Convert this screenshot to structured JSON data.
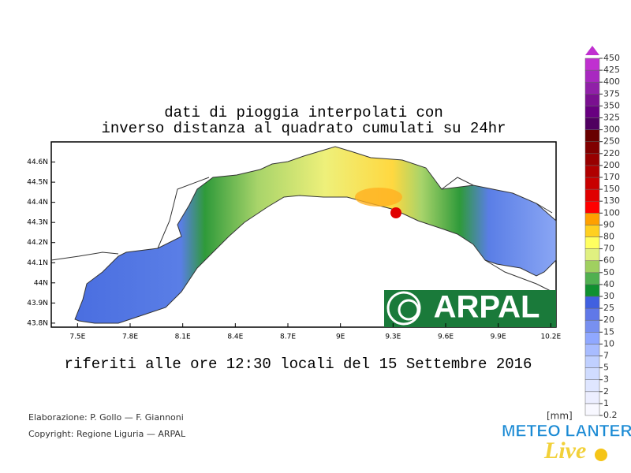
{
  "title": [
    "dati di pioggia interpolati con",
    "inverso distanza al quadrato cumulati su 24hr"
  ],
  "subtitle": "riferiti alle ore 12:30 locali del 15 Settembre 2016",
  "map": {
    "xlim": [
      7.35,
      10.23
    ],
    "ylim": [
      43.78,
      44.7
    ],
    "xticks": [
      {
        "value": 7.5,
        "label": "7.5E"
      },
      {
        "value": 7.8,
        "label": "7.8E"
      },
      {
        "value": 8.1,
        "label": "8.1E"
      },
      {
        "value": 8.4,
        "label": "8.4E"
      },
      {
        "value": 8.7,
        "label": "8.7E"
      },
      {
        "value": 9,
        "label": "9E"
      },
      {
        "value": 9.3,
        "label": "9.3E"
      },
      {
        "value": 9.6,
        "label": "9.6E"
      },
      {
        "value": 9.9,
        "label": "9.9E"
      },
      {
        "value": 10.2,
        "label": "10.2E"
      }
    ],
    "yticks": [
      {
        "value": 44.6,
        "label": "44.6N"
      },
      {
        "value": 44.5,
        "label": "44.5N"
      },
      {
        "value": 44.4,
        "label": "44.4N"
      },
      {
        "value": 44.3,
        "label": "44.3N"
      },
      {
        "value": 44.2,
        "label": "44.2N"
      },
      {
        "value": 44.1,
        "label": "44.1N"
      },
      {
        "value": 44,
        "label": "44N"
      },
      {
        "value": 43.9,
        "label": "43.9N"
      },
      {
        "value": 43.8,
        "label": "43.8N"
      }
    ]
  },
  "colorbar": {
    "unit": "[mm]",
    "levels": [
      0.2,
      1,
      2,
      3,
      5,
      7,
      10,
      15,
      20,
      25,
      30,
      40,
      50,
      60,
      70,
      80,
      90,
      100,
      130,
      150,
      170,
      200,
      220,
      250,
      300,
      325,
      350,
      375,
      400,
      425,
      450
    ],
    "colors": [
      "#f8f8ff",
      "#eceeff",
      "#dfe6ff",
      "#d0dcff",
      "#c0d0ff",
      "#a8bcff",
      "#90a8ff",
      "#7890f0",
      "#6078e8",
      "#4060e0",
      "#109030",
      "#50b050",
      "#a0d060",
      "#e0f080",
      "#ffff60",
      "#ffd020",
      "#ffa000",
      "#ff0000",
      "#e00000",
      "#c80000",
      "#b00000",
      "#980000",
      "#800000",
      "#680000",
      "#500060",
      "#680080",
      "#7a1090",
      "#9020a8",
      "#a828c0",
      "#c030d0"
    ]
  },
  "credits": [
    "Elaborazione: P. Gollo — F. Giannoni",
    "Copyright: Regione Liguria — ARPAL"
  ],
  "logos": {
    "arpal": "ARPAL",
    "meteo": "METEO LANTERNA",
    "live": "Live"
  }
}
